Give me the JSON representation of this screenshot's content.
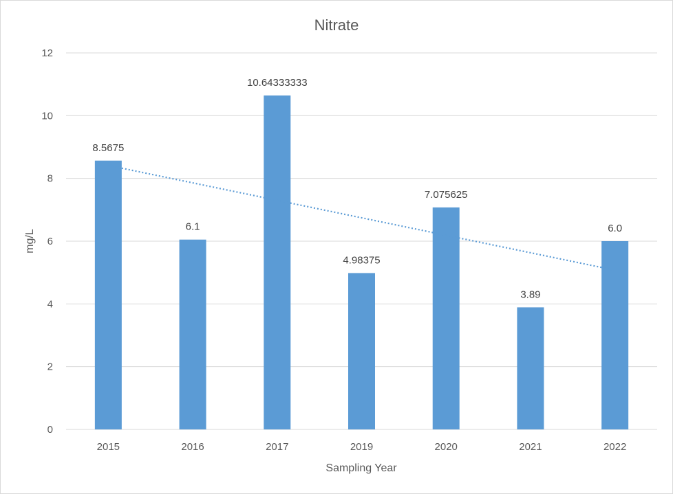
{
  "chart_data": {
    "type": "bar",
    "title": "Nitrate",
    "xlabel": "Sampling Year",
    "ylabel": "mg/L",
    "categories": [
      "2015",
      "2016",
      "2017",
      "2019",
      "2020",
      "2021",
      "2022"
    ],
    "series": [
      {
        "values": [
          8.5675,
          6.05,
          10.64333333,
          4.98375,
          7.075625,
          3.89,
          6.0
        ],
        "color": "#5b9bd5"
      }
    ],
    "data_labels": [
      "8.5675",
      "6.1",
      "10.64333333",
      "4.98375",
      "7.075625",
      "3.89",
      "6.0"
    ],
    "trendline": {
      "type": "linear",
      "style": "dotted",
      "color": "#5b9bd5"
    },
    "ylim": [
      0,
      12
    ],
    "yticks": [
      0,
      2,
      4,
      6,
      8,
      10,
      12
    ],
    "grid": true,
    "legend": "none"
  }
}
